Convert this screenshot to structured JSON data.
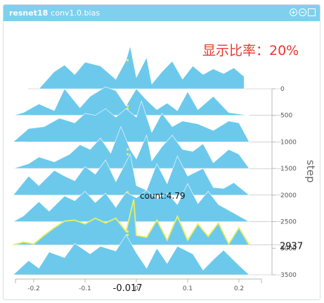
{
  "header": {
    "model_name": "resnet18",
    "tensor_name": "conv1.0.bias",
    "icons": [
      "zoom-in-icon",
      "zoom-out-icon",
      "fullscreen-icon"
    ]
  },
  "ratio_label": "显示比率：20%",
  "colors": {
    "header": "#7ed0ed",
    "fill": "#6cc9ec",
    "highlight": "#e8f060",
    "axis": "#b8b8b8",
    "ratio_text": "#e8372b"
  },
  "chart_data": {
    "type": "area",
    "style": "ridgeline",
    "xlabel": "",
    "ylabel": "step",
    "x_ticks": [
      -0.2,
      -0.1,
      0,
      0.1,
      0.2
    ],
    "x_tick_labels": [
      "-0.2",
      "-0.1",
      "0",
      "0.1",
      "0.2"
    ],
    "xlim": [
      -0.25,
      0.25
    ],
    "step_ticks": [
      0,
      500,
      1000,
      1500,
      2000,
      2500,
      3000,
      3500
    ],
    "step_range": [
      0,
      3500
    ],
    "series": [
      {
        "step": 0,
        "x": [
          -0.19,
          -0.16,
          -0.14,
          -0.12,
          -0.1,
          -0.07,
          -0.04,
          -0.02,
          -0.012,
          0.0,
          0.02,
          0.03,
          0.05,
          0.07,
          0.09,
          0.11,
          0.13,
          0.15,
          0.17,
          0.19,
          0.21
        ],
        "values": [
          0,
          1.8,
          2.5,
          1.5,
          2.8,
          2.4,
          1.0,
          3.0,
          4.5,
          1.2,
          3.3,
          0.5,
          1.8,
          2.9,
          1.0,
          2.4,
          1.5,
          2.1,
          1.6,
          2.2,
          1.3
        ]
      },
      {
        "step": 500,
        "x": [
          -0.24,
          -0.22,
          -0.19,
          -0.16,
          -0.14,
          -0.11,
          -0.09,
          -0.06,
          -0.04,
          -0.02,
          0.0,
          0.02,
          0.04,
          0.06,
          0.08,
          0.1,
          0.12,
          0.15,
          0.18,
          0.22
        ],
        "values": [
          0,
          0.3,
          1.2,
          0.5,
          2.8,
          0.8,
          2.0,
          3.0,
          2.6,
          1.0,
          2.8,
          1.6,
          0.6,
          1.3,
          0.5,
          2.5,
          0.6,
          2.0,
          0.3,
          0
        ]
      },
      {
        "step": 1000,
        "x": [
          -0.24,
          -0.21,
          -0.18,
          -0.15,
          -0.12,
          -0.1,
          -0.08,
          -0.06,
          -0.04,
          -0.02,
          0.0,
          0.01,
          0.03,
          0.05,
          0.07,
          0.09,
          0.12,
          0.15,
          0.18,
          0.2,
          0.22
        ],
        "values": [
          0,
          1.4,
          1.6,
          2.5,
          2.0,
          3.0,
          2.8,
          3.5,
          2.6,
          3.5,
          2.6,
          4.3,
          1.0,
          3.0,
          1.6,
          2.2,
          1.9,
          1.2,
          2.2,
          2.0,
          0
        ]
      },
      {
        "step": 1500,
        "x": [
          -0.24,
          -0.21,
          -0.19,
          -0.16,
          -0.13,
          -0.11,
          -0.09,
          -0.07,
          -0.05,
          -0.03,
          -0.012,
          0.0,
          0.02,
          0.03,
          0.05,
          0.07,
          0.09,
          0.11,
          0.13,
          0.15,
          0.18,
          0.2,
          0.22
        ],
        "values": [
          0,
          0.5,
          1.2,
          0.7,
          1.5,
          2.5,
          2.0,
          3.2,
          1.6,
          4.4,
          2.0,
          1.0,
          3.5,
          0.8,
          2.3,
          3.5,
          2.0,
          1.8,
          2.6,
          0.6,
          2.0,
          1.5,
          0
        ]
      },
      {
        "step": 2000,
        "x": [
          -0.24,
          -0.21,
          -0.19,
          -0.16,
          -0.14,
          -0.12,
          -0.1,
          -0.08,
          -0.06,
          -0.04,
          -0.012,
          0.0,
          0.02,
          0.04,
          0.06,
          0.08,
          0.1,
          0.13,
          0.15,
          0.17,
          0.19,
          0.22
        ],
        "values": [
          0,
          2.0,
          1.0,
          2.6,
          2.0,
          1.5,
          3.0,
          2.2,
          3.7,
          1.4,
          4.3,
          1.0,
          0.5,
          3.3,
          1.2,
          4.1,
          2.0,
          2.8,
          0.8,
          0.7,
          1.3,
          0
        ]
      },
      {
        "step": 2500,
        "x": [
          -0.24,
          -0.22,
          -0.19,
          -0.17,
          -0.14,
          -0.12,
          -0.1,
          -0.08,
          -0.06,
          -0.04,
          -0.02,
          0.0,
          0.02,
          0.04,
          0.06,
          0.08,
          0.1,
          0.12,
          0.14,
          0.16,
          0.18,
          0.22
        ],
        "values": [
          0,
          0.6,
          2.1,
          1.1,
          2.7,
          2.2,
          3.2,
          2.0,
          3.0,
          1.5,
          3.1,
          2.5,
          3.3,
          2.4,
          3.0,
          1.8,
          4.0,
          1.9,
          3.2,
          1.8,
          1.2,
          0
        ]
      },
      {
        "step": 2937,
        "highlight": true,
        "count": 4.79,
        "x": [
          -0.24,
          -0.22,
          -0.2,
          -0.18,
          -0.16,
          -0.14,
          -0.12,
          -0.1,
          -0.08,
          -0.06,
          -0.04,
          -0.02,
          -0.005,
          0.0,
          0.02,
          0.04,
          0.06,
          0.08,
          0.1,
          0.12,
          0.14,
          0.16,
          0.18,
          0.2,
          0.22
        ],
        "values": [
          0,
          0.3,
          0.1,
          1.0,
          1.8,
          2.5,
          2.6,
          2.2,
          2.8,
          2.3,
          2.8,
          1.4,
          4.79,
          1.0,
          0.8,
          2.6,
          0.5,
          3.0,
          0.5,
          2.2,
          0.9,
          2.3,
          0.1,
          1.8,
          0
        ]
      },
      {
        "step": 3500,
        "x": [
          -0.24,
          -0.21,
          -0.19,
          -0.17,
          -0.14,
          -0.12,
          -0.09,
          -0.07,
          -0.04,
          -0.02,
          0.0,
          0.02,
          0.04,
          0.06,
          0.08,
          0.11,
          0.13,
          0.15,
          0.17,
          0.2,
          0.22
        ],
        "values": [
          0,
          1.5,
          0.7,
          2.4,
          1.8,
          3.3,
          2.2,
          3.0,
          2.5,
          4.2,
          2.3,
          0.7,
          2.8,
          1.2,
          3.0,
          2.2,
          0.5,
          1.6,
          2.6,
          1.0,
          0
        ]
      }
    ],
    "hover": {
      "x_value": "-0.017",
      "step_value": "2937",
      "count_label": "count:4.79"
    },
    "grid": false
  }
}
